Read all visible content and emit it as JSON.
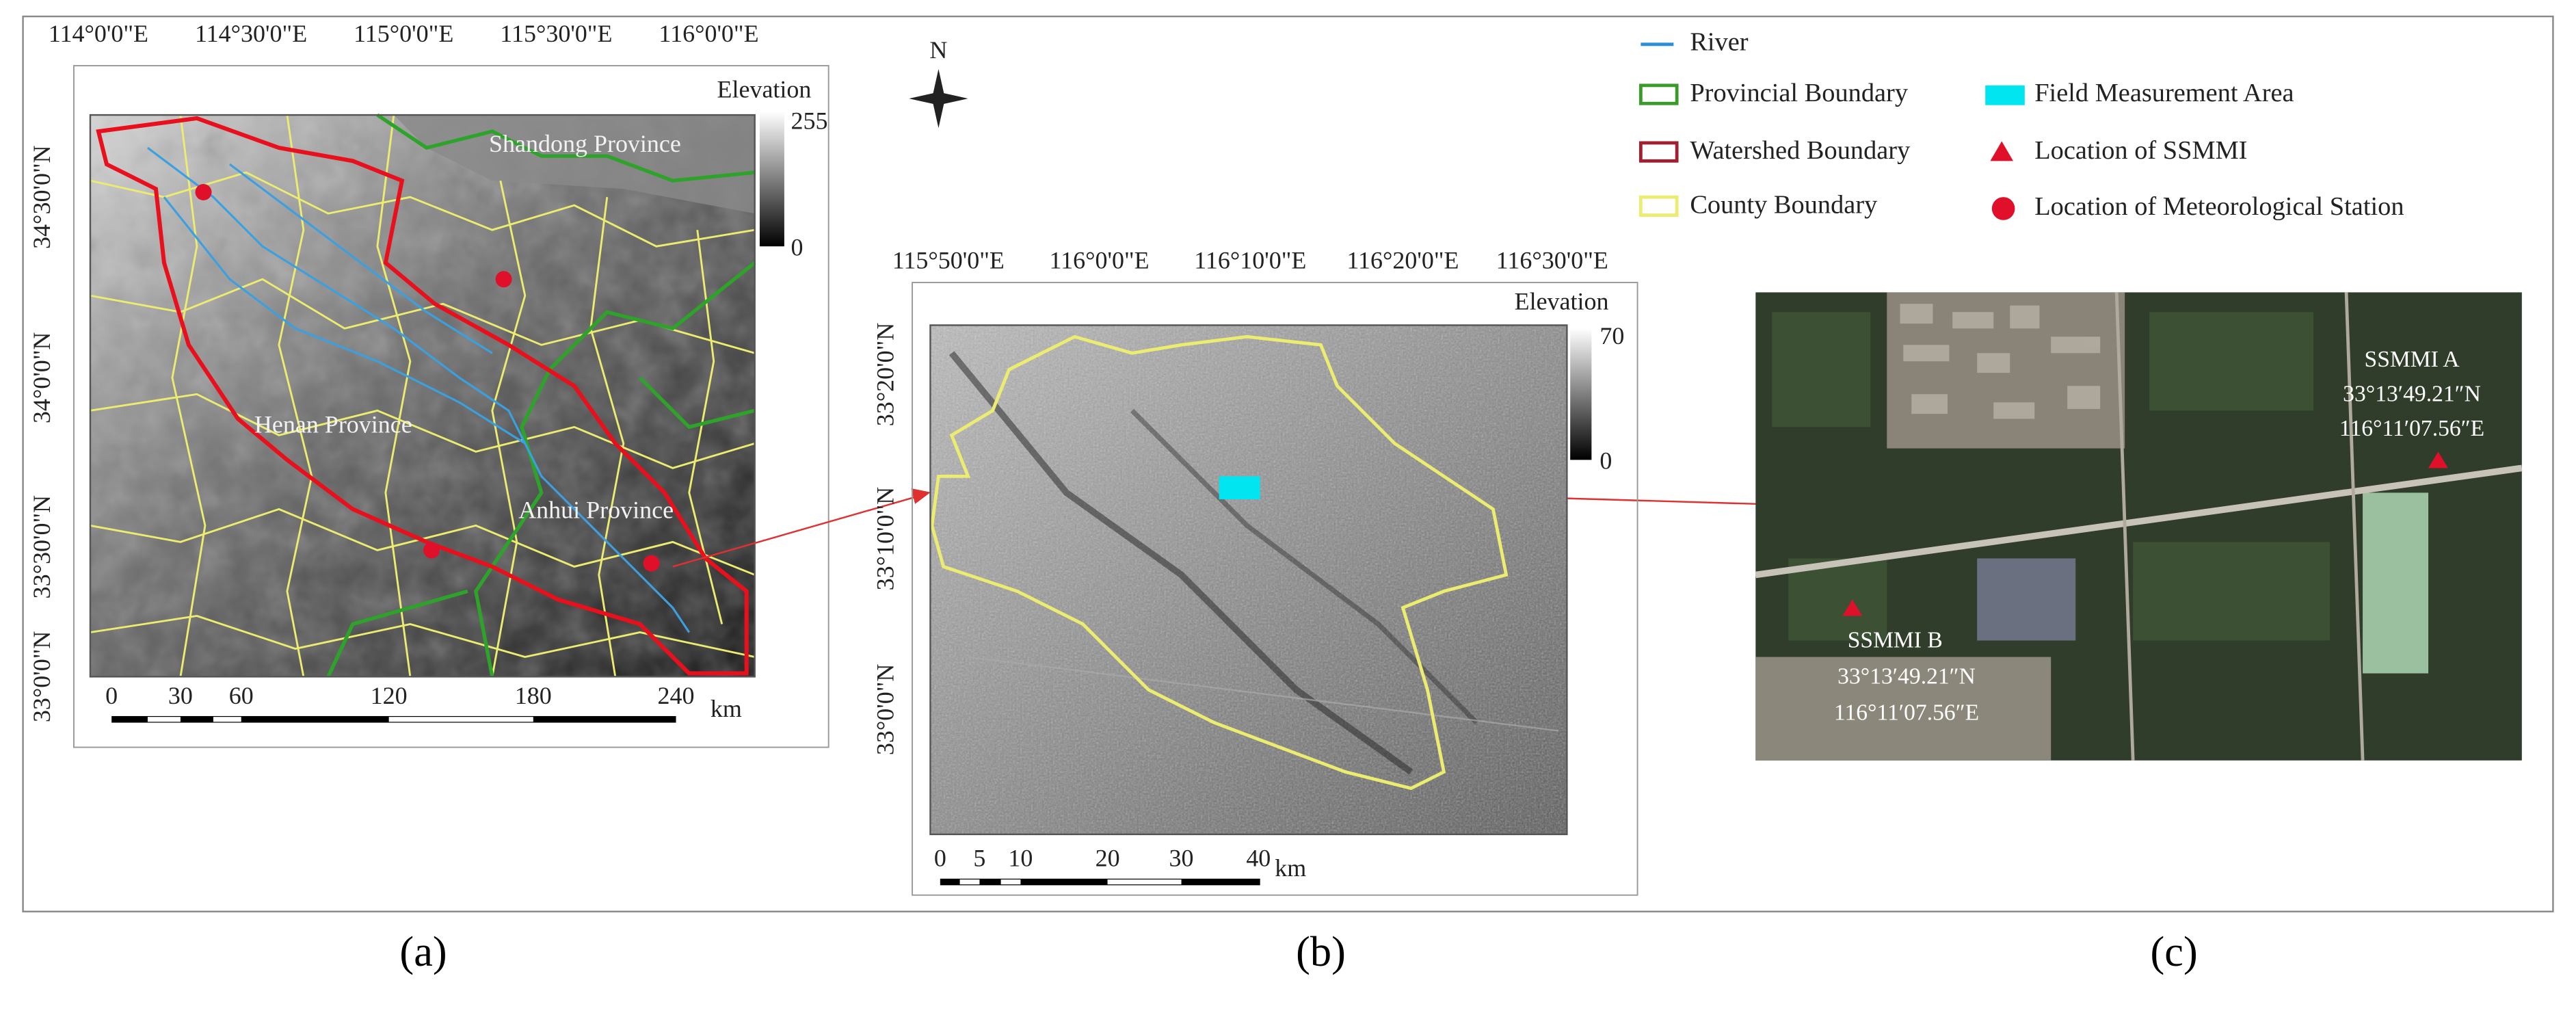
{
  "legend": {
    "items": [
      "River",
      "Provincial Boundary",
      "Watershed Boundary",
      "County Boundary",
      "Field Measurement Area",
      "Location of SSMMI",
      "Location of Meteorological Station"
    ]
  },
  "north": "N",
  "panel_a": {
    "caption": "(a)",
    "top_ticks": [
      "114°0'0\"E",
      "114°30'0\"E",
      "115°0'0\"E",
      "115°30'0\"E",
      "116°0'0\"E"
    ],
    "left_ticks": [
      "34°30'0\"N",
      "34°0'0\"N",
      "33°30'0\"N",
      "33°0'0\"N"
    ],
    "elevation_title": "Elevation",
    "elevation_max": "255",
    "elevation_min": "0",
    "provinces": [
      "Shandong Province",
      "Henan Province",
      "Anhui Province"
    ],
    "scale_labels": [
      "0",
      "30",
      "60",
      "120",
      "180",
      "240"
    ],
    "scale_unit": "km"
  },
  "panel_b": {
    "caption": "(b)",
    "top_ticks": [
      "115°50'0\"E",
      "116°0'0\"E",
      "116°10'0\"E",
      "116°20'0\"E",
      "116°30'0\"E"
    ],
    "left_ticks": [
      "33°20'0\"N",
      "33°10'0\"N",
      "33°0'0\"N"
    ],
    "elevation_title": "Elevation",
    "elevation_max": "70",
    "elevation_min": "0",
    "scale_labels": [
      "0",
      "5",
      "10",
      "20",
      "30",
      "40"
    ],
    "scale_unit": "km"
  },
  "panel_c": {
    "caption": "(c)",
    "sites": [
      {
        "name": "SSMMI A",
        "lat": "33°13′49.21″N",
        "lon": "116°11′07.56″E"
      },
      {
        "name": "SSMMI B",
        "lat": "33°13′49.21″N",
        "lon": "116°11′07.56″E"
      }
    ]
  }
}
